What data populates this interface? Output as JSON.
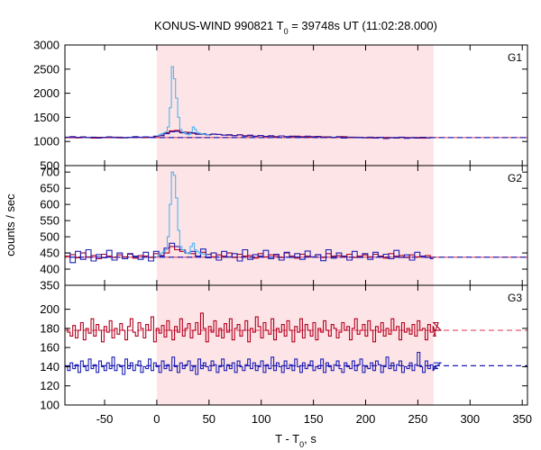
{
  "chart_data": {
    "type": "line",
    "title": "KONUS-WIND 990821 T",
    "title_sub": "0",
    "title_rest": " = 39748s UT (11:02:28.000)",
    "xlabel": "T - T",
    "xlabel_sub": "0",
    "xlabel_rest": ", s",
    "ylabel": "counts / sec",
    "xlim": [
      -88,
      355
    ],
    "x_ticks": [
      -50,
      0,
      50,
      100,
      150,
      200,
      250,
      300,
      350
    ],
    "shaded_interval": [
      0,
      265
    ],
    "colors": {
      "shade": "#fde4e6",
      "red": "#b4001e",
      "blue": "#1e1eb4",
      "cyan": "#50b4f0",
      "bg_red_dash": "#e65a78"
    },
    "panels": [
      {
        "label": "G1",
        "ylim": [
          500,
          3000
        ],
        "y_ticks": [
          500,
          1000,
          1500,
          2000,
          2500,
          3000
        ],
        "background_level": 1080,
        "series": [
          {
            "name": "red",
            "step": 5.0,
            "start": -88,
            "end": 265,
            "values": [
              1080,
              1085,
              1075,
              1090,
              1080,
              1070,
              1085,
              1078,
              1082,
              1090,
              1075,
              1080,
              1088,
              1095,
              1085,
              1080,
              1090,
              1100,
              1120,
              1180,
              1220,
              1230,
              1200,
              1190,
              1170,
              1160,
              1150,
              1140,
              1150,
              1145,
              1135,
              1130,
              1125,
              1140,
              1120,
              1115,
              1110,
              1120,
              1105,
              1110,
              1100,
              1115,
              1100,
              1095,
              1110,
              1100,
              1090,
              1100,
              1105,
              1095,
              1090,
              1085,
              1095,
              1100,
              1080,
              1090,
              1085,
              1080,
              1075,
              1080,
              1085,
              1080,
              1075,
              1070,
              1080,
              1078,
              1075,
              1080,
              1070,
              1075,
              1080
            ]
          },
          {
            "name": "blue",
            "step": 5.0,
            "start": -88,
            "end": 265,
            "values": [
              1090,
              1100,
              1085,
              1095,
              1080,
              1090,
              1070,
              1085,
              1095,
              1080,
              1090,
              1075,
              1085,
              1100,
              1090,
              1095,
              1085,
              1110,
              1130,
              1160,
              1200,
              1210,
              1180,
              1170,
              1180,
              1150,
              1160,
              1140,
              1155,
              1145,
              1130,
              1140,
              1120,
              1135,
              1110,
              1130,
              1105,
              1125,
              1100,
              1120,
              1090,
              1115,
              1095,
              1110,
              1100,
              1085,
              1110,
              1090,
              1100,
              1080,
              1095,
              1085,
              1100,
              1070,
              1090,
              1080,
              1085,
              1075,
              1090,
              1070,
              1085,
              1060,
              1080,
              1075,
              1090,
              1065,
              1080,
              1070,
              1085,
              1075,
              1080
            ]
          },
          {
            "name": "cyan",
            "step": 2.0,
            "start": 0,
            "end": 50,
            "values": [
              1120,
              1140,
              1160,
              1180,
              1200,
              1300,
              1700,
              2550,
              2300,
              1900,
              1500,
              1250,
              1200,
              1180,
              1150,
              1140,
              1200,
              1300,
              1250,
              1190,
              1170,
              1160,
              1150,
              1150,
              1140
            ]
          }
        ]
      },
      {
        "label": "G2",
        "ylim": [
          350,
          720
        ],
        "y_ticks": [
          350,
          400,
          450,
          500,
          550,
          600,
          650,
          700
        ],
        "background_level": 437,
        "series": [
          {
            "name": "red",
            "step": 5.0,
            "start": -88,
            "end": 265,
            "values": [
              440,
              445,
              435,
              450,
              438,
              442,
              432,
              446,
              440,
              436,
              444,
              438,
              446,
              434,
              442,
              440,
              436,
              448,
              442,
              450,
              470,
              460,
              455,
              450,
              448,
              440,
              452,
              446,
              438,
              444,
              440,
              450,
              436,
              446,
              440,
              442,
              434,
              448,
              438,
              444,
              442,
              436,
              450,
              440,
              434,
              446,
              440,
              438,
              444,
              436,
              448,
              440,
              442,
              438,
              446,
              436,
              440,
              444,
              438,
              446,
              440,
              434,
              448,
              440,
              442,
              436,
              444,
              438,
              440,
              442,
              436
            ]
          },
          {
            "name": "blue",
            "step": 5.0,
            "start": -88,
            "end": 265,
            "values": [
              450,
              420,
              455,
              430,
              460,
              425,
              445,
              435,
              458,
              428,
              450,
              432,
              448,
              440,
              430,
              452,
              425,
              455,
              440,
              465,
              480,
              470,
              460,
              450,
              455,
              440,
              462,
              435,
              450,
              428,
              455,
              438,
              448,
              425,
              460,
              430,
              445,
              440,
              458,
              432,
              446,
              428,
              452,
              436,
              448,
              430,
              456,
              438,
              445,
              426,
              460,
              434,
              450,
              440,
              428,
              455,
              436,
              448,
              430,
              452,
              438,
              446,
              432,
              458,
              436,
              444,
              428,
              452,
              440,
              436,
              432
            ]
          },
          {
            "name": "cyan",
            "step": 2.0,
            "start": 0,
            "end": 50,
            "values": [
              440,
              445,
              450,
              455,
              460,
              500,
              600,
              700,
              690,
              620,
              520,
              470,
              460,
              455,
              450,
              448,
              470,
              480,
              460,
              455,
              450,
              448,
              446,
              445,
              444
            ]
          }
        ]
      },
      {
        "label": "G3",
        "ylim": [
          100,
          225
        ],
        "y_ticks": [
          100,
          120,
          140,
          160,
          180,
          200
        ],
        "background_level_red": 178,
        "background_level_blue": 141,
        "series": [
          {
            "name": "red",
            "step": 2.5,
            "start": -88,
            "end": 265,
            "values": [
              180,
              176,
              172,
              183,
              170,
              178,
              186,
              168,
              180,
              175,
              190,
              172,
              184,
              178,
              166,
              182,
              176,
              188,
              170,
              180,
              174,
              185,
              178,
              168,
              182,
              190,
              176,
              172,
              186,
              180,
              170,
              184,
              178,
              192,
              166,
              180,
              175,
              183,
              171,
              188,
              178,
              168,
              182,
              176,
              190,
              172,
              180,
              185,
              170,
              178,
              186,
              174,
              196,
              180,
              166,
              182,
              176,
              188,
              172,
              180,
              170,
              185,
              176,
              190,
              168,
              180,
              184,
              172,
              178,
              188,
              166,
              180,
              176,
              192,
              182,
              170,
              186,
              178,
              174,
              190,
              168,
              180,
              176,
              184,
              172,
              188,
              178,
              166,
              182,
              176,
              190,
              170,
              184,
              178,
              172,
              186,
              168,
              180,
              176,
              188,
              178,
              172,
              184,
              180,
              170,
              176,
              186,
              178,
              182,
              168,
              180,
              190,
              174,
              178,
              184,
              172,
              188,
              178,
              166,
              182,
              176,
              186,
              172,
              180,
              174,
              190,
              178,
              182,
              168,
              186,
              176,
              180,
              174,
              184,
              172,
              188,
              178,
              180,
              168,
              184,
              176,
              182,
              172,
              186,
              178
            ]
          },
          {
            "name": "blue",
            "step": 2.5,
            "start": -88,
            "end": 265,
            "values": [
              140,
              136,
              144,
              138,
              142,
              134,
              146,
              140,
              136,
              148,
              138,
              142,
              134,
              146,
              140,
              136,
              144,
              138,
              150,
              136,
              142,
              140,
              132,
              148,
              138,
              144,
              136,
              142,
              146,
              134,
              140,
              138,
              148,
              136,
              144,
              140,
              134,
              146,
              138,
              142,
              136,
              150,
              140,
              134,
              144,
              138,
              142,
              146,
              136,
              140,
              132,
              148,
              138,
              144,
              140,
              136,
              146,
              142,
              134,
              140,
              148,
              136,
              142,
              138,
              144,
              134,
              146,
              140,
              136,
              142,
              148,
              138,
              144,
              136,
              140,
              146,
              134,
              142,
              138,
              150,
              136,
              144,
              140,
              134,
              146,
              138,
              142,
              136,
              148,
              140,
              134,
              144,
              138,
              142,
              146,
              136,
              140,
              138,
              148,
              134,
              144,
              140,
              136,
              142,
              146,
              138,
              134,
              144,
              140,
              138,
              146,
              136,
              142,
              148,
              134,
              140,
              138,
              144,
              136,
              146,
              142,
              134,
              140,
              150,
              138,
              144,
              136,
              142,
              146,
              134,
              140,
              138,
              144,
              136,
              142,
              155,
              140,
              134,
              146,
              138,
              142,
              136,
              140,
              138,
              144
            ]
          }
        ]
      }
    ]
  }
}
